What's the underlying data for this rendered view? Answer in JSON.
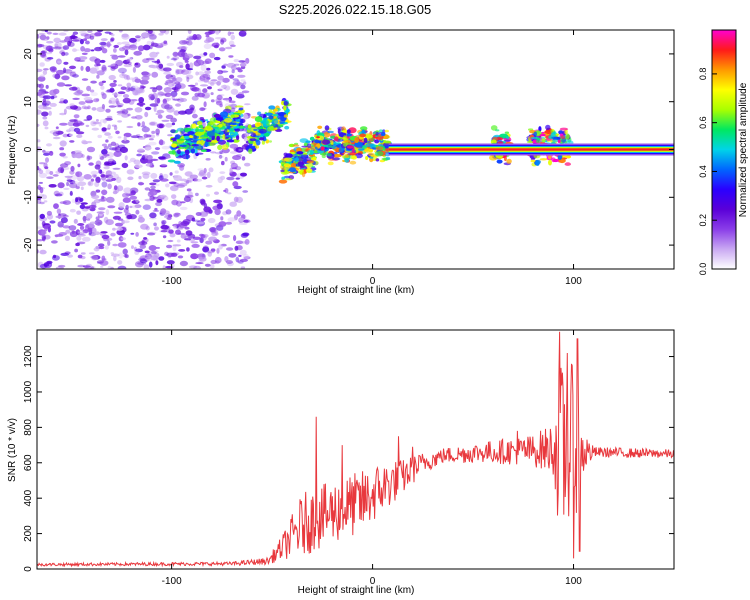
{
  "title": "S225.2026.022.15.18.G05",
  "chart_data": [
    {
      "type": "heatmap",
      "name": "spectrogram",
      "xlabel": "Height of straight line (km)",
      "ylabel": "Frequency (Hz)",
      "xlim": [
        -167,
        150
      ],
      "ylim": [
        -25,
        25
      ],
      "xticks": [
        -100,
        0,
        100
      ],
      "yticks": [
        -20,
        -10,
        0,
        10,
        20
      ],
      "colorbar": {
        "label": "Normalized spectral amplitude",
        "range": [
          0,
          0.98
        ],
        "ticks": [
          0.0,
          0.2,
          0.4,
          0.6,
          0.8
        ],
        "colors": [
          "#ffffff",
          "#c9a8f2",
          "#8a3de8",
          "#5a00d8",
          "#2a00ff",
          "#0066ff",
          "#00d4e8",
          "#00e860",
          "#aaff00",
          "#ffff00",
          "#ff9900",
          "#ff1a1a",
          "#ff00d0"
        ]
      },
      "features": {
        "carrier_line": {
          "freq_hz": 0,
          "x_start": 8,
          "x_end": 150,
          "amplitude": 0.95
        },
        "noise_region": {
          "x_start": -167,
          "x_end": -62,
          "amplitude_max": 0.25
        },
        "noisy_segments": [
          {
            "x_start": -100,
            "x_end": -65,
            "freq_center": 3,
            "freq_slope": 0.15,
            "amplitude": 0.35
          },
          {
            "x_start": -62,
            "x_end": -42,
            "freq_center": 5,
            "freq_slope": 0.3,
            "amplitude": 0.4
          },
          {
            "x_start": -45,
            "x_end": -28,
            "freq_center": -2,
            "freq_slope": 0.2,
            "amplitude": 0.45
          },
          {
            "x_start": -28,
            "x_end": 8,
            "freq_center": 1,
            "freq_slope": 0,
            "amplitude": 0.5
          },
          {
            "x_start": 60,
            "x_end": 68,
            "freq_center": 0.5,
            "freq_slope": 0,
            "amplitude": 0.55
          },
          {
            "x_start": 78,
            "x_end": 98,
            "freq_center": 1,
            "freq_slope": 0,
            "amplitude": 0.6
          }
        ]
      }
    },
    {
      "type": "line",
      "name": "snr",
      "xlabel": "Height of straight line (km)",
      "ylabel": "SNR (10 * v/v)",
      "xlim": [
        -167,
        150
      ],
      "ylim": [
        0,
        1350
      ],
      "xticks": [
        -100,
        0,
        100
      ],
      "yticks": [
        0,
        200,
        400,
        600,
        800,
        1000,
        1200
      ],
      "color": "#e8383d",
      "envelope_x": [
        -167,
        -70,
        -52,
        -45,
        -35,
        -20,
        -5,
        5,
        15,
        25,
        35,
        55,
        80,
        90,
        93,
        100,
        103,
        110,
        150
      ],
      "envelope_mean": [
        25,
        30,
        45,
        120,
        250,
        320,
        380,
        460,
        520,
        600,
        640,
        660,
        670,
        680,
        660,
        640,
        660,
        660,
        650
      ],
      "envelope_amp": [
        8,
        10,
        20,
        70,
        180,
        180,
        180,
        150,
        100,
        60,
        45,
        60,
        90,
        150,
        500,
        520,
        180,
        30,
        25
      ],
      "spikes": [
        {
          "x": -28,
          "y": 860
        },
        {
          "x": -15,
          "y": 700
        },
        {
          "x": 13,
          "y": 750
        },
        {
          "x": 20,
          "y": 690
        },
        {
          "x": 72,
          "y": 780
        },
        {
          "x": 93,
          "y": 1340
        },
        {
          "x": 97,
          "y": 1220
        },
        {
          "x": 102,
          "y": 1300
        },
        {
          "x": 100,
          "y": 60
        },
        {
          "x": 103,
          "y": 100
        }
      ]
    }
  ]
}
